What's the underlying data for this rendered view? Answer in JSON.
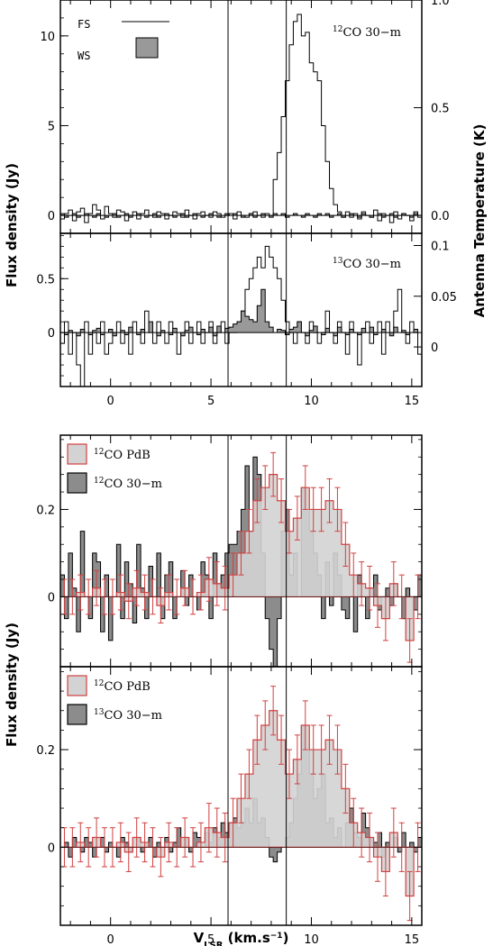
{
  "chart_data": [
    {
      "id": "panel1",
      "type": "line",
      "title": "",
      "xlabel": "",
      "ylabel": "Flux density (Jy)",
      "y2label": "Antenna Temperature (K)",
      "xlim": [
        -2.5,
        15.5
      ],
      "ylim": [
        -1.0,
        12.0
      ],
      "y2lim": [
        -0.0833,
        1.0
      ],
      "yticks": [
        0,
        5,
        10
      ],
      "ytick_labels": [
        "0",
        "5",
        "10"
      ],
      "y2ticks": [
        0.0,
        0.5,
        1.0
      ],
      "y2tick_labels": [
        "0.0",
        "0.5",
        "1.0"
      ],
      "x_minor_step": 1,
      "label_parts": {
        "sup": "12",
        "text": "CO 30−m"
      },
      "legend": [
        {
          "name": "FS",
          "style": "line"
        },
        {
          "name": "WS",
          "style": "filled box",
          "fill": "#999999"
        }
      ],
      "series": [
        {
          "name": "FS",
          "style": "step",
          "x0": -2.5,
          "dx": 0.2,
          "values": [
            -0.2,
            0.1,
            0.3,
            -0.3,
            0.2,
            0.4,
            -0.4,
            0.1,
            0.6,
            0.3,
            -0.2,
            0.5,
            0.1,
            -0.1,
            0.3,
            0.2,
            -0.3,
            0.0,
            0.2,
            -0.2,
            0.1,
            0.3,
            0.0,
            -0.1,
            0.2,
            0.1,
            -0.2,
            0.0,
            0.2,
            0.1,
            -0.1,
            0.3,
            0.0,
            -0.2,
            0.1,
            0.2,
            0.0,
            -0.1,
            0.2,
            0.1,
            -0.1,
            0.0,
            0.1,
            -0.2,
            0.2,
            0.0,
            -0.1,
            0.1,
            0.2,
            0.0,
            -0.1,
            0.1,
            0.0,
            2.0,
            3.5,
            5.5,
            7.5,
            9.5,
            10.8,
            11.2,
            10.0,
            10.2,
            8.5,
            8.0,
            7.5,
            5.0,
            3.0,
            1.5,
            0.6,
            0.2,
            -0.1,
            0.2,
            -0.1,
            0.1,
            -0.2,
            0.2,
            0.0,
            -0.1,
            0.3,
            -0.3,
            0.1,
            0.0,
            -0.4,
            0.2,
            -0.2,
            0.1,
            0.0,
            -0.3,
            0.2,
            -0.1,
            0.1,
            -0.2
          ]
        },
        {
          "name": "WS",
          "style": "step-filled",
          "fill": "#999999",
          "x0": -2.5,
          "dx": 0.2,
          "values": [
            0.1,
            -0.1,
            0.0,
            0.1,
            -0.1,
            0.0,
            0.1,
            0.0,
            -0.1,
            0.1,
            0.0,
            -0.1,
            0.0,
            0.1,
            -0.1,
            0.0,
            0.1,
            -0.1,
            0.0,
            0.1,
            0.0,
            -0.1,
            0.0,
            0.1,
            -0.1,
            0.0,
            0.1,
            0.0,
            -0.1,
            0.0,
            0.1,
            -0.1,
            0.0,
            0.1,
            0.0,
            -0.1,
            0.0,
            0.1,
            0.0,
            -0.1,
            0.0,
            0.1,
            0.0,
            0.1,
            0.0,
            -0.1,
            0.0,
            0.1,
            -0.1,
            0.0,
            0.1,
            0.0,
            -0.1,
            0.1,
            0.0,
            0.1,
            -0.1,
            0.0,
            0.1,
            0.0,
            -0.1,
            0.1,
            0.0,
            -0.1,
            0.1,
            0.0,
            0.1,
            -0.1,
            0.0,
            0.1,
            -0.1,
            0.0,
            0.1,
            0.0,
            -0.1,
            0.1,
            0.0,
            -0.1,
            0.0,
            0.1,
            -0.1,
            0.0,
            0.1,
            -0.1,
            0.0,
            0.1,
            0.0,
            -0.1,
            0.1,
            0.0
          ]
        }
      ]
    },
    {
      "id": "panel2",
      "type": "line",
      "title": "",
      "xlabel": "",
      "ylabel": "Flux density (Jy)",
      "y2label": "Antenna Temperature (K)",
      "xlim": [
        -2.5,
        15.5
      ],
      "ylim": [
        -0.5,
        0.92
      ],
      "y2lim": [
        -0.039,
        0.112
      ],
      "yticks": [
        0,
        0.5
      ],
      "ytick_labels": [
        "0",
        "0.5"
      ],
      "y2ticks": [
        0,
        0.05,
        0.1
      ],
      "y2tick_labels": [
        "0",
        "0.05",
        "0.1"
      ],
      "xticks": [
        0,
        5,
        10,
        15
      ],
      "xtick_labels": [
        "0",
        "5",
        "10",
        "15"
      ],
      "x_minor_step": 1,
      "label_parts": {
        "sup": "13",
        "text": "CO 30−m"
      },
      "series": [
        {
          "name": "FS",
          "style": "step",
          "x0": -2.5,
          "dx": 0.2,
          "values": [
            -0.1,
            0.1,
            -0.2,
            0.0,
            -0.3,
            -0.5,
            0.1,
            -0.2,
            0.0,
            -0.1,
            0.1,
            -0.2,
            -0.1,
            0.0,
            0.1,
            -0.1,
            0.0,
            -0.2,
            0.1,
            0.0,
            -0.1,
            0.2,
            0.0,
            -0.1,
            0.1,
            0.0,
            -0.1,
            0.1,
            0.0,
            -0.2,
            0.0,
            0.1,
            -0.1,
            0.0,
            0.1,
            -0.1,
            0.0,
            0.1,
            -0.1,
            0.0,
            0.1,
            -0.1,
            0.0,
            0.0,
            0.1,
            0.2,
            0.4,
            0.5,
            0.6,
            0.7,
            0.6,
            0.8,
            0.7,
            0.6,
            0.5,
            0.3,
            0.1,
            0.0,
            -0.1,
            0.1,
            0.0,
            -0.1,
            0.1,
            0.0,
            -0.1,
            0.0,
            0.2,
            0.0,
            -0.1,
            0.1,
            0.0,
            -0.2,
            0.1,
            0.0,
            -0.3,
            0.0,
            0.1,
            -0.1,
            0.0,
            0.1,
            -0.2,
            0.1,
            0.0,
            0.2,
            0.4,
            0.0,
            -0.1,
            0.1,
            0.0,
            -0.2
          ]
        },
        {
          "name": "WS",
          "style": "step-filled",
          "fill": "#999999",
          "x0": -2.5,
          "dx": 0.2,
          "values": [
            0.0,
            -0.02,
            0.02,
            0.0,
            -0.03,
            0.03,
            0.0,
            -0.02,
            0.02,
            0.04,
            -0.02,
            0.0,
            0.03,
            -0.03,
            0.0,
            0.02,
            -0.02,
            0.05,
            0.0,
            -0.02,
            0.03,
            0.0,
            0.1,
            0.0,
            -0.03,
            0.02,
            0.0,
            -0.02,
            0.04,
            0.0,
            -0.03,
            0.02,
            0.05,
            0.0,
            -0.02,
            0.03,
            0.0,
            0.05,
            -0.03,
            0.06,
            0.0,
            0.04,
            0.05,
            0.08,
            0.1,
            0.2,
            0.15,
            0.12,
            0.1,
            0.25,
            0.4,
            0.1,
            0.05,
            0.0,
            0.03,
            0.02,
            -0.02,
            0.03,
            0.05,
            0.1,
            0.0,
            -0.03,
            0.02,
            0.06,
            0.0,
            -0.02,
            0.04,
            0.0,
            -0.03,
            0.05,
            0.0,
            -0.02,
            0.03,
            0.0,
            -0.02,
            0.04,
            0.0,
            0.05,
            -0.02,
            0.0,
            0.03,
            0.0,
            -0.03,
            0.05,
            0.0,
            0.02,
            -0.02,
            0.0,
            0.03,
            0.0
          ]
        }
      ]
    },
    {
      "id": "panel3",
      "type": "bar",
      "title": "",
      "xlabel": "",
      "ylabel": "Flux density (Jy)",
      "xlim": [
        -2.5,
        15.5
      ],
      "ylim": [
        -0.16,
        0.37
      ],
      "yticks": [
        0,
        0.2
      ],
      "ytick_labels": [
        "0",
        "0.2"
      ],
      "x_minor_step": 1,
      "legend": [
        {
          "sup": "12",
          "text": "CO PdB",
          "fill": "#d3d3d3",
          "stroke": "#d24040"
        },
        {
          "sup": "12",
          "text": "CO 30−m",
          "fill": "#8c8c8c",
          "stroke": "#000000"
        }
      ],
      "series": [
        {
          "name": "30-m",
          "style": "step-filled",
          "fill": "#8c8c8c",
          "x0": -2.5,
          "dx": 0.2,
          "values": [
            0.05,
            -0.05,
            0.1,
            0.02,
            -0.08,
            0.15,
            0.0,
            -0.05,
            0.1,
            0.08,
            -0.08,
            0.05,
            -0.1,
            0.0,
            0.12,
            -0.05,
            0.08,
            0.03,
            -0.06,
            0.12,
            0.02,
            -0.05,
            0.07,
            0.0,
            0.1,
            -0.05,
            0.05,
            0.08,
            -0.05,
            0.0,
            0.06,
            -0.02,
            0.05,
            0.0,
            -0.03,
            0.08,
            0.05,
            -0.05,
            0.1,
            0.03,
            0.05,
            0.1,
            0.12,
            0.12,
            0.15,
            0.2,
            0.3,
            0.15,
            0.32,
            0.28,
            0.1,
            -0.05,
            -0.12,
            -0.17,
            -0.05,
            0.15,
            0.2,
            0.05,
            0.1,
            0.0,
            0.25,
            0.2,
            0.15,
            0.1,
            0.05,
            -0.05,
            0.08,
            -0.02,
            0.1,
            0.05,
            -0.03,
            -0.05,
            0.0,
            -0.08,
            0.05,
            0.0,
            -0.05,
            0.02,
            0.05,
            -0.03,
            0.0,
            0.02,
            -0.02,
            0.03,
            0.0,
            -0.05,
            0.02,
            0.0,
            -0.03,
            0.05
          ]
        },
        {
          "name": "PdB",
          "style": "step-filled-errorbars",
          "fill": "#d3d3d3",
          "stroke": "#d24040",
          "x0": -2.5,
          "dx": 0.4,
          "values": [
            0.0,
            0.0,
            0.01,
            0.0,
            0.02,
            0.0,
            0.0,
            0.01,
            -0.01,
            0.02,
            0.01,
            0.0,
            -0.02,
            0.01,
            0.0,
            0.02,
            0.0,
            0.01,
            0.04,
            0.03,
            0.02,
            0.05,
            0.1,
            0.15,
            0.22,
            0.25,
            0.28,
            0.22,
            0.15,
            0.18,
            0.25,
            0.2,
            0.2,
            0.22,
            0.2,
            0.12,
            0.05,
            0.03,
            0.02,
            -0.02,
            -0.05,
            0.03,
            0.0,
            -0.1,
            0.0
          ],
          "errors": [
            0.04,
            0.04,
            0.04,
            0.04,
            0.04,
            0.04,
            0.04,
            0.04,
            0.04,
            0.04,
            0.04,
            0.04,
            0.04,
            0.04,
            0.04,
            0.04,
            0.04,
            0.04,
            0.05,
            0.05,
            0.05,
            0.05,
            0.05,
            0.05,
            0.05,
            0.05,
            0.05,
            0.05,
            0.05,
            0.05,
            0.05,
            0.05,
            0.05,
            0.05,
            0.05,
            0.05,
            0.05,
            0.05,
            0.05,
            0.05,
            0.05,
            0.05,
            0.05,
            0.05,
            0.05
          ]
        }
      ]
    },
    {
      "id": "panel4",
      "type": "bar",
      "title": "",
      "xlabel": "V_LSR (km.s^-1)",
      "xlabel_parts": {
        "main": "V",
        "sub": "LSR",
        "unit_pre": " (km.s",
        "unit_sup": "−1",
        "unit_post": ")"
      },
      "ylabel": "Flux density (Jy)",
      "xlim": [
        -2.5,
        15.5
      ],
      "ylim": [
        -0.16,
        0.37
      ],
      "yticks": [
        0,
        0.2
      ],
      "ytick_labels": [
        "0",
        "0.2"
      ],
      "xticks": [
        0,
        5,
        10,
        15
      ],
      "xtick_labels": [
        "0",
        "5",
        "10",
        "15"
      ],
      "x_minor_step": 1,
      "legend": [
        {
          "sup": "12",
          "text": "CO PdB",
          "fill": "#d3d3d3",
          "stroke": "#d24040"
        },
        {
          "sup": "13",
          "text": "CO 30−m",
          "fill": "#8c8c8c",
          "stroke": "#000000"
        }
      ],
      "series": [
        {
          "name": "30-m",
          "style": "step-filled",
          "fill": "#8c8c8c",
          "x0": -2.5,
          "dx": 0.2,
          "values": [
            0.0,
            0.01,
            -0.02,
            0.02,
            0.0,
            -0.01,
            0.02,
            0.01,
            -0.02,
            0.0,
            0.02,
            -0.01,
            0.01,
            0.0,
            -0.02,
            0.02,
            0.01,
            -0.01,
            0.0,
            0.02,
            -0.01,
            0.01,
            0.02,
            -0.02,
            0.01,
            0.0,
            0.02,
            -0.01,
            0.01,
            0.04,
            0.0,
            0.02,
            -0.01,
            0.03,
            0.02,
            0.0,
            0.03,
            0.01,
            0.04,
            0.02,
            0.05,
            0.03,
            0.05,
            0.06,
            0.04,
            0.05,
            0.08,
            0.05,
            0.1,
            0.05,
            0.06,
            0.02,
            -0.02,
            -0.03,
            -0.01,
            0.0,
            0.02,
            0.05,
            0.1,
            0.15,
            0.25,
            0.2,
            0.15,
            0.1,
            0.12,
            0.15,
            0.05,
            0.06,
            0.02,
            0.04,
            0.0,
            0.05,
            0.08,
            0.03,
            0.02,
            0.07,
            0.04,
            0.02,
            0.01,
            0.03,
            -0.02,
            0.01,
            0.0,
            0.02,
            -0.01,
            0.03,
            0.0,
            0.01,
            -0.01,
            0.02
          ]
        },
        {
          "name": "PdB",
          "style": "step-filled-errorbars",
          "fill": "#d3d3d3",
          "stroke": "#d24040",
          "x0": -2.5,
          "dx": 0.4,
          "values": [
            0.0,
            0.0,
            0.01,
            0.0,
            0.02,
            0.0,
            0.0,
            0.01,
            -0.01,
            0.02,
            0.01,
            0.0,
            -0.02,
            0.01,
            0.0,
            0.02,
            0.0,
            0.01,
            0.04,
            0.03,
            0.02,
            0.05,
            0.1,
            0.15,
            0.22,
            0.25,
            0.28,
            0.22,
            0.15,
            0.18,
            0.25,
            0.2,
            0.2,
            0.22,
            0.2,
            0.12,
            0.05,
            0.03,
            0.02,
            -0.02,
            -0.05,
            0.03,
            0.0,
            -0.1,
            0.0
          ],
          "errors": [
            0.04,
            0.04,
            0.04,
            0.04,
            0.04,
            0.04,
            0.04,
            0.04,
            0.04,
            0.04,
            0.04,
            0.04,
            0.04,
            0.04,
            0.04,
            0.04,
            0.04,
            0.04,
            0.05,
            0.05,
            0.05,
            0.05,
            0.05,
            0.05,
            0.05,
            0.05,
            0.05,
            0.05,
            0.05,
            0.05,
            0.05,
            0.05,
            0.05,
            0.05,
            0.05,
            0.05,
            0.05,
            0.05,
            0.05,
            0.05,
            0.05,
            0.05,
            0.05,
            0.05,
            0.05
          ]
        }
      ]
    }
  ],
  "vertical_lines_x": [
    5.85,
    8.75
  ],
  "ylabel_top": "Flux density (Jy)",
  "ylabel_bottom": "Flux density (Jy)",
  "y2label": "Antenna Temperature (K)"
}
